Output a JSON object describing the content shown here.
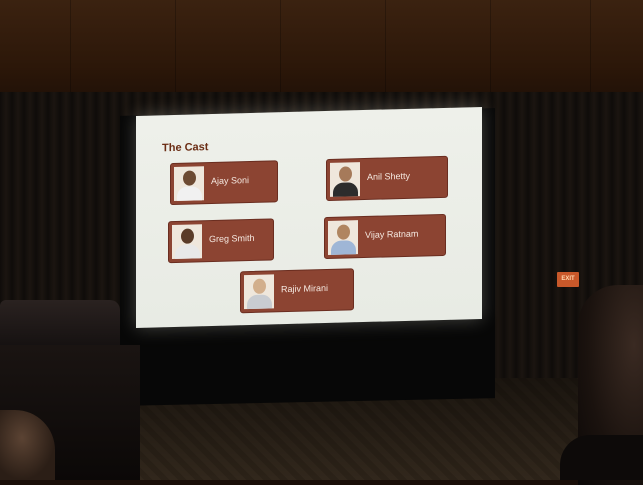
{
  "slide": {
    "title": "The Cast",
    "cast": [
      {
        "name": "Ajay Soni",
        "skin": "#6d4a32",
        "shirt": "#f1f1f1"
      },
      {
        "name": "Anil Shetty",
        "skin": "#a67a5a",
        "shirt": "#2c2c2c"
      },
      {
        "name": "Greg Smith",
        "skin": "#5a3b28",
        "shirt": "#e8e8e8"
      },
      {
        "name": "Vijay Ratnam",
        "skin": "#b08560",
        "shirt": "#9fb6d6"
      },
      {
        "name": "Rajiv Mirani",
        "skin": "#d2ae8c",
        "shirt": "#c9ccd1"
      }
    ]
  },
  "room": {
    "exit_sign": "EXIT"
  }
}
